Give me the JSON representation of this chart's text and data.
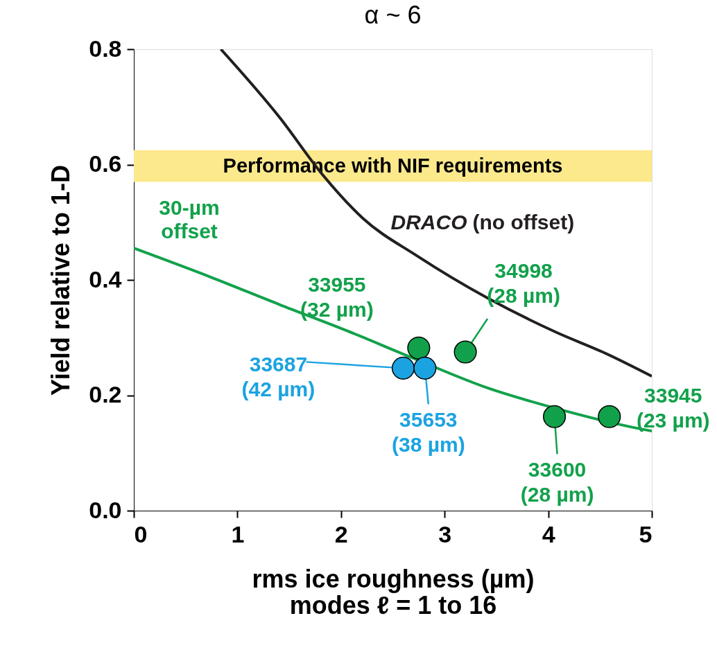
{
  "chart_data": {
    "type": "scatter",
    "title": "α ~ 6",
    "xlabel": "rms ice roughness (µm)\nmodes ℓ = 1 to 16",
    "ylabel": "Yield relative to 1-D",
    "xlim": [
      0,
      5
    ],
    "ylim": [
      0,
      0.8
    ],
    "xticks": [
      0,
      1,
      2,
      3,
      4,
      5
    ],
    "yticks": [
      {
        "value": 0,
        "label": "0.0"
      },
      {
        "value": 0.2,
        "label": "0.2"
      },
      {
        "value": 0.4,
        "label": "0.4"
      },
      {
        "value": 0.6,
        "label": "0.6"
      },
      {
        "value": 0.8,
        "label": "0.8"
      }
    ],
    "grid": false,
    "marker": "circle",
    "bands": [
      {
        "axis": "y",
        "from": 0.57,
        "to": 0.625,
        "label": "Performance with NIF requirements",
        "color": "#fce98c"
      }
    ],
    "series": [
      {
        "name": "DRACO (no offset)",
        "type": "line",
        "marker": "none",
        "color": "#231f20",
        "x": [
          0.84,
          1.41,
          1.81,
          2.21,
          2.74,
          3.41,
          4.08,
          4.55,
          5
        ],
        "values": [
          0.8,
          0.681,
          0.585,
          0.507,
          0.441,
          0.369,
          0.309,
          0.273,
          0.233
        ]
      },
      {
        "name": "30-µm offset",
        "type": "line",
        "marker": "none",
        "color": "#12a14b",
        "x": [
          0,
          0.74,
          1.41,
          2.07,
          2.74,
          3.41,
          4.08,
          4.75,
          5
        ],
        "values": [
          0.455,
          0.405,
          0.357,
          0.311,
          0.261,
          0.213,
          0.177,
          0.147,
          0.138
        ]
      },
      {
        "color": "#12a14b",
        "x": [
          2.75,
          3.2,
          4.06,
          4.59
        ],
        "values": [
          0.282,
          0.275,
          0.163,
          0.163
        ]
      },
      {
        "color": "#1ba3e1",
        "x": [
          2.6,
          2.81
        ],
        "values": [
          0.247,
          0.247
        ]
      }
    ],
    "annotations": [
      {
        "text": "33955\n(32 µm)",
        "x": 2.75,
        "y": 0.282
      },
      {
        "text": "34998\n(28 µm)",
        "x": 3.2,
        "y": 0.275
      },
      {
        "text": "33687\n(42 µm)",
        "x": 2.6,
        "y": 0.247
      },
      {
        "text": "35653\n(38 µm)",
        "x": 2.81,
        "y": 0.247
      },
      {
        "text": "33600\n(28 µm)",
        "x": 4.06,
        "y": 0.163
      },
      {
        "text": "33945\n(23 µm)",
        "x": 4.59,
        "y": 0.163
      }
    ]
  }
}
